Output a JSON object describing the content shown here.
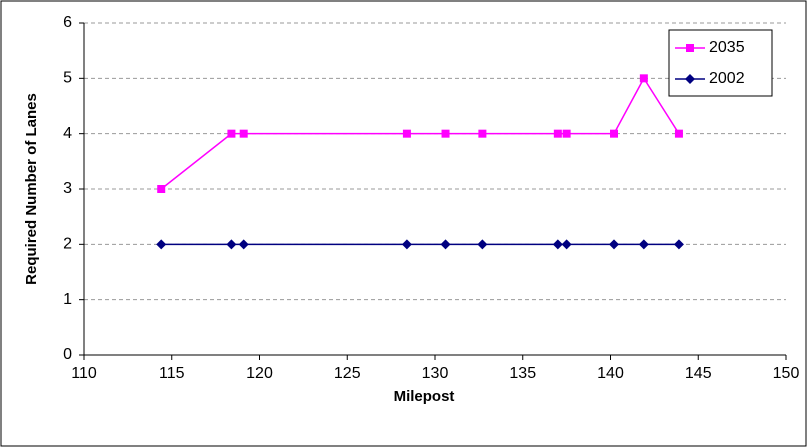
{
  "chart_data": {
    "type": "line",
    "x_label": "Milepost",
    "y_label": "Required Number of Lanes",
    "x": [
      114.4,
      118.4,
      119.1,
      128.4,
      130.6,
      132.7,
      137.0,
      137.5,
      140.2,
      141.9,
      143.9
    ],
    "series": [
      {
        "name": "2035",
        "color": "#ff00ff",
        "marker": "square",
        "values": [
          3,
          4,
          4,
          4,
          4,
          4,
          4,
          4,
          4,
          5,
          4
        ]
      },
      {
        "name": "2002",
        "color": "#000080",
        "marker": "diamond",
        "values": [
          2,
          2,
          2,
          2,
          2,
          2,
          2,
          2,
          2,
          2,
          2
        ]
      }
    ],
    "xlim": [
      110,
      150
    ],
    "xticks": [
      110,
      115,
      120,
      125,
      130,
      135,
      140,
      145,
      150
    ],
    "ylim": [
      0,
      6
    ],
    "yticks": [
      0,
      1,
      2,
      3,
      4,
      5,
      6
    ],
    "grid": true,
    "legend": "top-right"
  }
}
